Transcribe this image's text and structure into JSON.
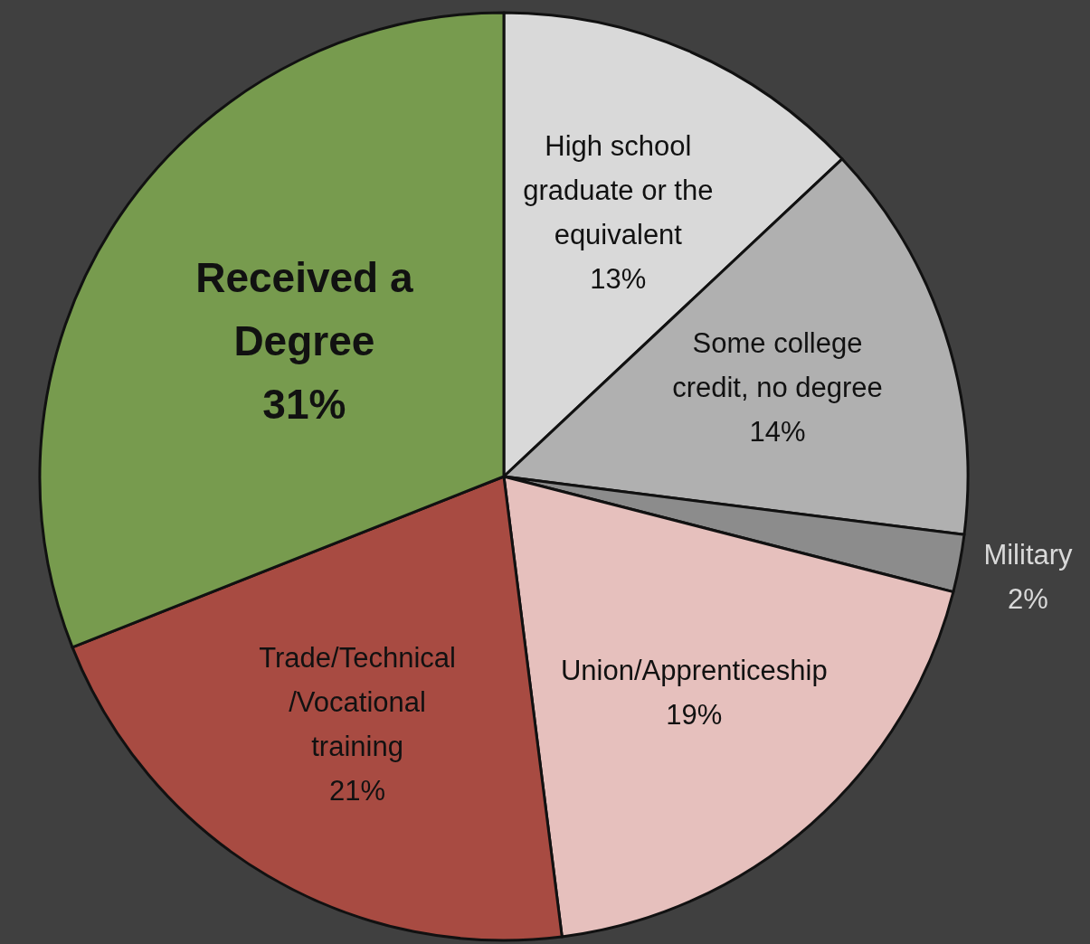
{
  "chart_data": {
    "type": "pie",
    "categories": [
      "High school\ngraduate or the\nequivalent",
      "Some college\ncredit, no degree",
      "Military",
      "Union/Apprenticeship",
      "Trade/Technical\n/Vocational\ntraining",
      "Received a\nDegree"
    ],
    "values": [
      13,
      14,
      2,
      19,
      21,
      31
    ],
    "colors": [
      "#d9d9d9",
      "#b0b0b0",
      "#8c8c8c",
      "#e6c0bd",
      "#a84b42",
      "#779b4e"
    ],
    "value_labels": [
      "13%",
      "14%",
      "2%",
      "19%",
      "21%",
      "31%"
    ]
  }
}
